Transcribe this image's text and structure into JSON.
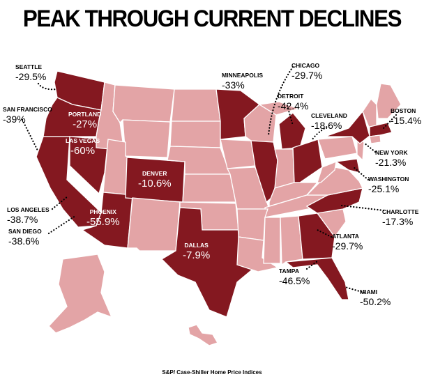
{
  "title": "PEAK THROUGH CURRENT DECLINES",
  "source": "S&P/ Case-Shiller Home Price Indices",
  "colors": {
    "declined_state": "#841820",
    "other_state": "#e3a4a6",
    "background": "#ffffff"
  },
  "cities": [
    {
      "name": "SEATTLE",
      "value": "-29.5%"
    },
    {
      "name": "PORTLAND",
      "value": "-27%"
    },
    {
      "name": "SAN FRANCISCO",
      "value": "-39%"
    },
    {
      "name": "LAS VEGAS",
      "value": "-60%"
    },
    {
      "name": "LOS ANGELES",
      "value": "-38.7%"
    },
    {
      "name": "SAN DIEGO",
      "value": "-38.6%"
    },
    {
      "name": "PHOENIX",
      "value": "-55.9%"
    },
    {
      "name": "DENVER",
      "value": "-10.6%"
    },
    {
      "name": "DALLAS",
      "value": "-7.9%"
    },
    {
      "name": "MINNEAPOLIS",
      "value": "-33%"
    },
    {
      "name": "CHICAGO",
      "value": "-29.7%"
    },
    {
      "name": "DETROIT",
      "value": "-42.4%"
    },
    {
      "name": "CLEVELAND",
      "value": "-18.6%"
    },
    {
      "name": "BOSTON",
      "value": "-15.4%"
    },
    {
      "name": "NEW YORK",
      "value": "-21.3%"
    },
    {
      "name": "WASHINGTON",
      "value": "-25.1%"
    },
    {
      "name": "CHARLOTTE",
      "value": "-17.3%"
    },
    {
      "name": "ATLANTA",
      "value": "-29.7%"
    },
    {
      "name": "TAMPA",
      "value": "-46.5%"
    },
    {
      "name": "MIAMI",
      "value": "-50.2%"
    }
  ]
}
